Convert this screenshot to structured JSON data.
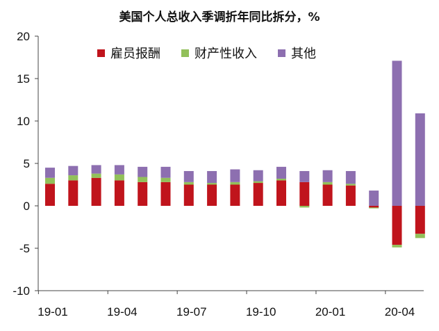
{
  "chart_data": {
    "type": "bar",
    "stacked": true,
    "title": "美国个人总收入季调折年同比拆分，%",
    "legend_position": "top",
    "ylim": [
      -10,
      20
    ],
    "yticks": [
      -10,
      -5,
      0,
      5,
      10,
      15,
      20
    ],
    "x_tick_labels": [
      "19-01",
      "19-04",
      "19-07",
      "19-10",
      "20-01",
      "20-04"
    ],
    "categories": [
      "19-01",
      "19-02",
      "19-03",
      "19-04",
      "19-05",
      "19-06",
      "19-07",
      "19-08",
      "19-09",
      "19-10",
      "19-11",
      "19-12",
      "20-01",
      "20-02",
      "20-03",
      "20-04",
      "20-05"
    ],
    "series": [
      {
        "name": "雇员报酬",
        "color": "#c0141c",
        "values": [
          2.6,
          3.0,
          3.3,
          3.0,
          2.8,
          2.8,
          2.5,
          2.5,
          2.5,
          2.7,
          3.0,
          2.8,
          2.5,
          2.4,
          -0.2,
          -4.6,
          -3.3
        ]
      },
      {
        "name": "财产性收入",
        "color": "#92c05a",
        "values": [
          0.7,
          0.6,
          0.5,
          0.7,
          0.6,
          0.5,
          0.3,
          0.2,
          0.3,
          0.2,
          0.2,
          -0.2,
          0.3,
          0.2,
          -0.1,
          -0.3,
          -0.5
        ]
      },
      {
        "name": "其他",
        "color": "#8d6fb0",
        "values": [
          1.2,
          1.1,
          1.0,
          1.1,
          1.2,
          1.3,
          1.3,
          1.4,
          1.5,
          1.3,
          1.4,
          1.3,
          1.4,
          1.5,
          1.8,
          17.1,
          10.9
        ]
      }
    ]
  }
}
